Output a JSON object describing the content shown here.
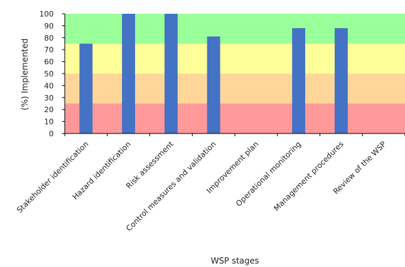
{
  "chart_data": {
    "type": "bar",
    "title": "",
    "xlabel": "WSP stages",
    "ylabel": "(%) Implemented",
    "ylim": [
      0,
      100
    ],
    "yticks": [
      0,
      10,
      20,
      30,
      40,
      50,
      60,
      70,
      80,
      90,
      100
    ],
    "categories": [
      "Stakeholder identification",
      "Hazard identification",
      "Risk assessment",
      "Control measures and validation",
      "Improvement plan",
      "Operational monitoring",
      "Management procedures",
      "Review of the WSP"
    ],
    "values": [
      75,
      100,
      100,
      81,
      0,
      88,
      88,
      0
    ],
    "bar_color": "#4472C4",
    "bands": [
      {
        "from": 0,
        "to": 25,
        "color": "#FF9999"
      },
      {
        "from": 25,
        "to": 50,
        "color": "#FFD699"
      },
      {
        "from": 50,
        "to": 75,
        "color": "#FFFF99"
      },
      {
        "from": 75,
        "to": 100,
        "color": "#99FF99"
      }
    ],
    "grid": false,
    "legend": "none"
  }
}
